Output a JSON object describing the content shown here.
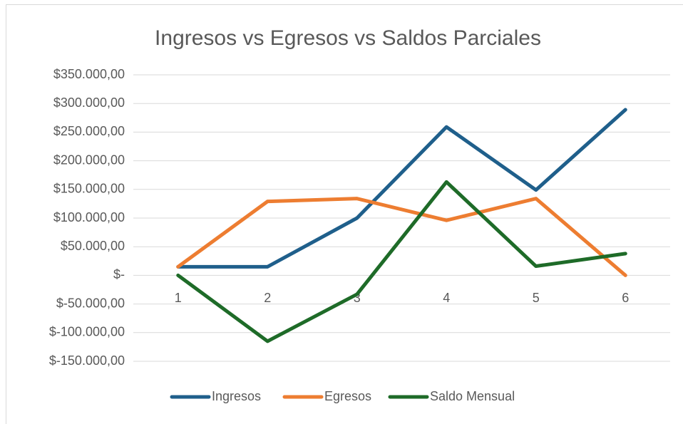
{
  "chart_data": {
    "type": "line",
    "title": "Ingresos vs Egresos vs Saldos Parciales",
    "categories": [
      "1",
      "2",
      "3",
      "4",
      "5",
      "6"
    ],
    "series": [
      {
        "name": "Ingresos",
        "color": "#1f5f8b",
        "values": [
          15000,
          15000,
          100000,
          259000,
          149000,
          289000
        ]
      },
      {
        "name": "Egresos",
        "color": "#ed7d31",
        "values": [
          15000,
          129000,
          134000,
          96000,
          134000,
          0
        ]
      },
      {
        "name": "Saldo Mensual",
        "color": "#1e6b28",
        "values": [
          0,
          -115000,
          -33000,
          163000,
          16000,
          38000
        ]
      }
    ],
    "ylim": [
      -150000,
      350000
    ],
    "yticks": [
      {
        "value": -150000,
        "label": "$-150.000,00"
      },
      {
        "value": -100000,
        "label": "$-100.000,00"
      },
      {
        "value": -50000,
        "label": "$-50.000,00"
      },
      {
        "value": 0,
        "label": "$-"
      },
      {
        "value": 50000,
        "label": "$50.000,00"
      },
      {
        "value": 100000,
        "label": "$100.000,00"
      },
      {
        "value": 150000,
        "label": "$150.000,00"
      },
      {
        "value": 200000,
        "label": "$200.000,00"
      },
      {
        "value": 250000,
        "label": "$250.000,00"
      },
      {
        "value": 300000,
        "label": "$300.000,00"
      },
      {
        "value": 350000,
        "label": "$350.000,00"
      }
    ],
    "grid": true,
    "legend": "bottom"
  }
}
